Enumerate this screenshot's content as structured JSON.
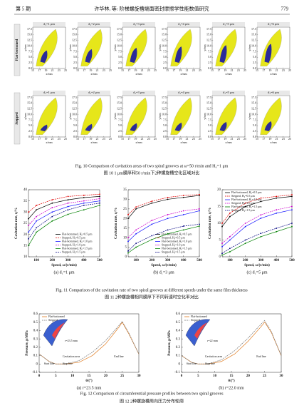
{
  "header": {
    "left": "第 5 期",
    "center": "许华林, 等: 阶梯螺旋槽端面密封摩擦学性能数值研究",
    "right": "779"
  },
  "fig10": {
    "panel_titles": [
      "d₁=1 μm",
      "d₁=2 μm",
      "d₁=3 μm",
      "d₁=4 μm",
      "d₁=5 μm",
      "d₁=6 μm"
    ],
    "row_labels": [
      "Flat-bottomed",
      "Stepped"
    ],
    "xticks": [
      15,
      17,
      19,
      21,
      23,
      25
    ],
    "yticks": [
      {
        "value": 0,
        "label": "0.0"
      },
      2.5,
      {
        "value": 5,
        "label": "5.0"
      },
      7.5,
      {
        "value": 10,
        "label": "10.0"
      },
      12.5,
      {
        "value": 15,
        "label": "15.0"
      },
      17.5
    ],
    "xlabel": "x/mm",
    "ylabel": "y/mm",
    "caption_en": "Fig. 10   Comparison of cavitation areas of two spiral grooves at ω=50 r/min and H₀=1 μm",
    "caption_zh": "图 10   1 μm膜厚和50 r/min下2种螺旋槽空化区域对比"
  },
  "fig11": {
    "caption_en": "Fig. 11   Comparison of the cavitation rate of two spiral grooves at different speeds under the same film thickness",
    "caption_zh": "图 11   2种螺旋槽相同膜厚下不同转速时空化率对比",
    "chart_data": [
      {
        "type": "line",
        "subcaption": "(a) d₁=1 μm",
        "xlabel": "Speed, ω/(r/min)",
        "ylabel": "Cavitation rate, η/%",
        "xlim": [
          50,
          500
        ],
        "xticks": [
          100,
          200,
          300,
          400,
          500
        ],
        "ylim": [
          10,
          40
        ],
        "yticks": [
          10,
          15,
          20,
          25,
          30,
          35,
          40
        ],
        "legend": "lower right",
        "x": [
          50,
          100,
          200,
          300,
          400,
          500
        ],
        "series": [
          {
            "name": "Flat-bottomed, H₀=0.5 μm",
            "color": "#000000",
            "values": [
              27,
              31,
              34,
              35.5,
              36.5,
              37
            ]
          },
          {
            "name": "Stepped, H₀=0.5 μm",
            "color": "#e00000",
            "values": [
              30,
              33,
              35.5,
              37,
              37.5,
              38
            ]
          },
          {
            "name": "Flat-bottomed, H₀=1.0 μm",
            "color": "#1a1aff",
            "values": [
              21,
              26,
              30,
              32.5,
              34,
              35
            ]
          },
          {
            "name": "Stepped, H₀=1.0 μm",
            "color": "#cc00cc",
            "values": [
              24,
              28,
              32,
              34,
              35,
              36
            ]
          },
          {
            "name": "Flat-bottomed, H₀=1.5 μm",
            "color": "#008000",
            "values": [
              15,
              21,
              26,
              29,
              31,
              33
            ]
          },
          {
            "name": "Stepped, H₀=1.5 μm",
            "color": "#000080",
            "values": [
              18,
              23,
              28,
              31,
              33,
              34
            ]
          }
        ]
      },
      {
        "type": "line",
        "subcaption": "(b) d₁=3 μm",
        "xlabel": "Speed, ω/(r/min)",
        "ylabel": "Cavitation rate, η/%",
        "xlim": [
          50,
          500
        ],
        "xticks": [
          100,
          200,
          300,
          400,
          500
        ],
        "ylim": [
          0,
          35
        ],
        "yticks": [
          0,
          5,
          10,
          15,
          20,
          25,
          30,
          35
        ],
        "legend": "lower right",
        "x": [
          50,
          100,
          200,
          300,
          400,
          500
        ],
        "series": [
          {
            "name": "Flat-bottomed, H₀=0.5 μm",
            "color": "#000000",
            "values": [
              20,
              25,
              28,
              30,
              31,
              32
            ]
          },
          {
            "name": "Stepped, H₀=0.5 μm",
            "color": "#e00000",
            "values": [
              22,
              26,
              29,
              31,
              32,
              32.5
            ]
          },
          {
            "name": "Flat-bottomed, H₀=1.0 μm",
            "color": "#1a1aff",
            "values": [
              8,
              12,
              17,
              20,
              22,
              24
            ]
          },
          {
            "name": "Stepped, H₀=1.0 μm",
            "color": "#cc00cc",
            "values": [
              10,
              14,
              19,
              22,
              24,
              25
            ]
          },
          {
            "name": "Flat-bottomed, H₀=1.5 μm",
            "color": "#008000",
            "values": [
              2,
              5,
              9,
              12,
              14,
              16
            ]
          },
          {
            "name": "Stepped, H₀=1.5 μm",
            "color": "#000080",
            "values": [
              3,
              7,
              11,
              14,
              16,
              17
            ]
          }
        ]
      },
      {
        "type": "line",
        "subcaption": "(c) d₁=5 μm",
        "xlabel": "Speed, ω/(r/min)",
        "ylabel": "Cavitation rate, η/%",
        "xlim": [
          50,
          500
        ],
        "xticks": [
          100,
          200,
          300,
          400,
          500
        ],
        "ylim": [
          0,
          20
        ],
        "yticks": [
          0,
          5,
          10,
          15,
          20
        ],
        "legend": "upper left",
        "x": [
          50,
          100,
          200,
          300,
          400,
          500
        ],
        "series": [
          {
            "name": "Flat-bottomed, H₀=0.5 μm",
            "color": "#000000",
            "values": [
              9,
              12,
              15,
              16.5,
              17.5,
              18
            ]
          },
          {
            "name": "Stepped, H₀=0.5 μm",
            "color": "#e00000",
            "values": [
              10,
              13,
              16,
              17.5,
              18,
              18.5
            ]
          },
          {
            "name": "Flat-bottomed, H₀=1.0 μm",
            "color": "#1a1aff",
            "values": [
              3,
              5,
              9,
              11.5,
              13,
              14
            ]
          },
          {
            "name": "Stepped, H₀=1.0 μm",
            "color": "#cc00cc",
            "values": [
              4,
              6,
              10,
              12.5,
              14,
              15
            ]
          },
          {
            "name": "Flat-bottomed, H₀=1.5 μm",
            "color": "#008000",
            "values": [
              0.5,
              1.5,
              4,
              6,
              7.5,
              9
            ]
          },
          {
            "name": "Stepped, H₀=1.5 μm",
            "color": "#000080",
            "values": [
              1,
              2.5,
              5,
              7,
              8.5,
              10
            ]
          }
        ]
      }
    ]
  },
  "fig12": {
    "caption_en": "Fig. 12   Comparison of circumferential pressure profiles between two spiral grooves",
    "caption_zh": "图 12   2种螺旋槽周向压力分布轮廓",
    "chart_data": [
      {
        "type": "line",
        "subcaption": "(a) r=23.5 mm",
        "xlabel": "θ/(°)",
        "ylabel": "Pressure, p/MPa",
        "xlim": [
          0,
          30
        ],
        "xticks": [
          0,
          5,
          10,
          15,
          20,
          25,
          30
        ],
        "ylim": [
          -0.1,
          0.6
        ],
        "yticks": [
          -0.1,
          0,
          0.1,
          0.2,
          0.3,
          0.4,
          0.5,
          0.6
        ],
        "legend": "upper left",
        "annotations": [
          "r=23.5 mm",
          "Cavitation area",
          "Start line",
          "Step line",
          "End line"
        ],
        "x": [
          0,
          3,
          5,
          8,
          12,
          16,
          20,
          24,
          25,
          27,
          30
        ],
        "series": [
          {
            "name": "Flat-bottomed",
            "color": "#e07b20",
            "values": [
              0.12,
              0.03,
              0,
              0,
              0.02,
              0.1,
              0.24,
              0.44,
              0.5,
              0.36,
              0.12
            ]
          },
          {
            "name": "Stepped",
            "color": "#777777",
            "values": [
              0.12,
              0.03,
              0,
              0,
              0.04,
              0.14,
              0.28,
              0.46,
              0.51,
              0.37,
              0.12
            ]
          }
        ]
      },
      {
        "type": "line",
        "subcaption": "(b) r=22.0 mm",
        "xlabel": "θ/(°)",
        "ylabel": "Pressure, p/MPa",
        "xlim": [
          0,
          30
        ],
        "xticks": [
          0,
          5,
          10,
          15,
          20,
          25,
          30
        ],
        "ylim": [
          -0.1,
          0.6
        ],
        "yticks": [
          -0.1,
          0,
          0.1,
          0.2,
          0.3,
          0.4,
          0.5,
          0.6
        ],
        "legend": "upper left",
        "annotations": [
          "r=22 mm",
          "Cavitation area",
          "Start line",
          "Step line",
          "End line"
        ],
        "x": [
          0,
          3,
          5,
          8,
          12,
          16,
          20,
          24,
          25,
          27,
          30
        ],
        "series": [
          {
            "name": "Flat-bottomed",
            "color": "#e07b20",
            "values": [
              0.1,
              0.02,
              0,
              0,
              0.03,
              0.12,
              0.27,
              0.45,
              0.5,
              0.38,
              0.1
            ]
          },
          {
            "name": "Stepped",
            "color": "#777777",
            "values": [
              0.1,
              0.02,
              0,
              0,
              0.05,
              0.16,
              0.31,
              0.48,
              0.52,
              0.39,
              0.1
            ]
          }
        ]
      }
    ]
  }
}
